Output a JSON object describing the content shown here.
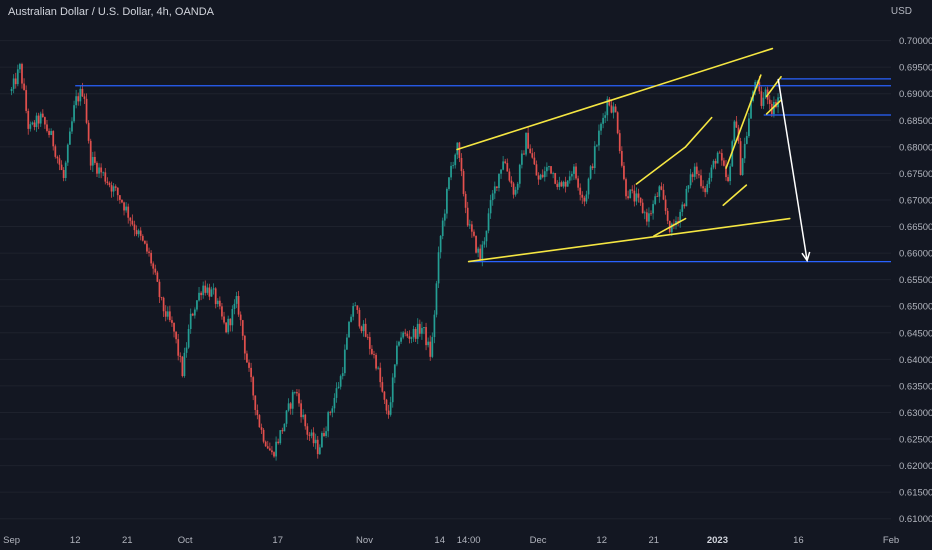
{
  "header": {
    "title": "Australian Dollar / U.S. Dollar, 4h, OANDA",
    "axis_unit": "USD"
  },
  "colors": {
    "background": "#131722",
    "up_candle": "#26a69a",
    "down_candle": "#ef5350",
    "horizontal_levels": "#2962ff",
    "trendlines": "#f5e642",
    "projection_arrow": "#ffffff",
    "axis_text": "#b2b5be"
  },
  "chart_data": {
    "type": "candlestick",
    "symbol": "AUDUSD",
    "timeframe": "4h",
    "source": "OANDA",
    "y_ticks": [
      "0.70000",
      "0.69500",
      "0.69000",
      "0.68500",
      "0.68000",
      "0.67500",
      "0.67000",
      "0.66500",
      "0.66000",
      "0.65500",
      "0.65000",
      "0.64500",
      "0.64000",
      "0.63500",
      "0.63000",
      "0.62500",
      "0.62000",
      "0.61500",
      "0.61000"
    ],
    "ylim": [
      0.6075,
      0.7035
    ],
    "x_ticks": [
      {
        "label": "Sep",
        "t": 0.0
      },
      {
        "label": "12",
        "t": 11.0
      },
      {
        "label": "21",
        "t": 20.0
      },
      {
        "label": "Oct",
        "t": 30.0
      },
      {
        "label": "17",
        "t": 46.0
      },
      {
        "label": "Nov",
        "t": 61.0
      },
      {
        "label": "14",
        "t": 74.0
      },
      {
        "label": "14:00",
        "t": 79.0
      },
      {
        "label": "Dec",
        "t": 91.0
      },
      {
        "label": "12",
        "t": 102.0
      },
      {
        "label": "21",
        "t": 111.0
      },
      {
        "label": "2023",
        "t": 122.0
      },
      {
        "label": "16",
        "t": 136.0
      },
      {
        "label": "Feb",
        "t": 152.0
      }
    ],
    "xlim": [
      -2.0,
      152.0
    ],
    "price_path": [
      [
        0.0,
        0.6905
      ],
      [
        1.5,
        0.695
      ],
      [
        3.0,
        0.683
      ],
      [
        5.0,
        0.6855
      ],
      [
        7.0,
        0.6815
      ],
      [
        9.0,
        0.674
      ],
      [
        11.0,
        0.6885
      ],
      [
        12.5,
        0.691
      ],
      [
        13.5,
        0.678
      ],
      [
        16.0,
        0.6745
      ],
      [
        19.0,
        0.67
      ],
      [
        21.0,
        0.6655
      ],
      [
        24.0,
        0.659
      ],
      [
        26.0,
        0.65
      ],
      [
        28.0,
        0.6455
      ],
      [
        29.5,
        0.6375
      ],
      [
        31.0,
        0.648
      ],
      [
        33.0,
        0.654
      ],
      [
        35.0,
        0.652
      ],
      [
        37.0,
        0.6455
      ],
      [
        39.0,
        0.651
      ],
      [
        41.0,
        0.6375
      ],
      [
        43.0,
        0.627
      ],
      [
        45.0,
        0.622
      ],
      [
        47.0,
        0.6275
      ],
      [
        49.0,
        0.6345
      ],
      [
        51.0,
        0.6265
      ],
      [
        53.0,
        0.623
      ],
      [
        55.0,
        0.63
      ],
      [
        57.0,
        0.637
      ],
      [
        59.0,
        0.6505
      ],
      [
        61.0,
        0.645
      ],
      [
        63.0,
        0.6395
      ],
      [
        65.0,
        0.6285
      ],
      [
        67.0,
        0.6445
      ],
      [
        69.0,
        0.6445
      ],
      [
        71.0,
        0.646
      ],
      [
        72.5,
        0.6405
      ],
      [
        74.0,
        0.662
      ],
      [
        76.0,
        0.6765
      ],
      [
        77.0,
        0.68
      ],
      [
        79.0,
        0.665
      ],
      [
        81.0,
        0.659
      ],
      [
        83.0,
        0.67
      ],
      [
        85.0,
        0.678
      ],
      [
        87.0,
        0.671
      ],
      [
        89.0,
        0.682
      ],
      [
        91.0,
        0.6735
      ],
      [
        93.0,
        0.6765
      ],
      [
        95.0,
        0.672
      ],
      [
        97.0,
        0.676
      ],
      [
        99.0,
        0.67
      ],
      [
        101.0,
        0.68
      ],
      [
        103.0,
        0.689
      ],
      [
        104.5,
        0.686
      ],
      [
        106.0,
        0.672
      ],
      [
        108.0,
        0.67
      ],
      [
        110.0,
        0.6665
      ],
      [
        112.0,
        0.672
      ],
      [
        114.0,
        0.664
      ],
      [
        116.0,
        0.669
      ],
      [
        118.0,
        0.676
      ],
      [
        120.0,
        0.672
      ],
      [
        122.0,
        0.679
      ],
      [
        124.0,
        0.6725
      ],
      [
        125.0,
        0.687
      ],
      [
        126.0,
        0.676
      ],
      [
        127.0,
        0.682
      ],
      [
        128.5,
        0.693
      ],
      [
        129.5,
        0.688
      ],
      [
        130.5,
        0.6905
      ],
      [
        131.5,
        0.687
      ],
      [
        132.5,
        0.6895
      ],
      [
        133.0,
        0.689
      ]
    ],
    "annotations": {
      "horizontal_levels": [
        {
          "y": 0.6915,
          "t_start": 11.0,
          "t_end": 152.0
        },
        {
          "y": 0.6928,
          "t_start": 133.0,
          "t_end": 152.0
        },
        {
          "y": 0.686,
          "t_start": 130.0,
          "t_end": 152.0
        },
        {
          "y": 0.6584,
          "t_start": 79.0,
          "t_end": 152.0
        }
      ],
      "trendlines": [
        {
          "t1": 77.0,
          "y1": 0.6795,
          "t2": 131.5,
          "y2": 0.6985
        },
        {
          "t1": 79.0,
          "y1": 0.6584,
          "t2": 134.5,
          "y2": 0.6665
        },
        {
          "t1": 108.0,
          "y1": 0.673,
          "t2": 116.5,
          "y2": 0.68
        },
        {
          "t1": 111.0,
          "y1": 0.6632,
          "t2": 116.5,
          "y2": 0.6665
        },
        {
          "t1": 116.5,
          "y1": 0.68,
          "t2": 121.0,
          "y2": 0.6855
        },
        {
          "t1": 123.0,
          "y1": 0.669,
          "t2": 127.0,
          "y2": 0.6728
        },
        {
          "t1": 123.5,
          "y1": 0.676,
          "t2": 129.5,
          "y2": 0.6935
        },
        {
          "t1": 130.5,
          "y1": 0.6895,
          "t2": 133.0,
          "y2": 0.6932
        },
        {
          "t1": 130.5,
          "y1": 0.6862,
          "t2": 133.0,
          "y2": 0.6888
        }
      ],
      "projection_arrow": {
        "t1": 132.5,
        "y1": 0.6928,
        "t2": 137.5,
        "y2": 0.6586
      }
    }
  }
}
